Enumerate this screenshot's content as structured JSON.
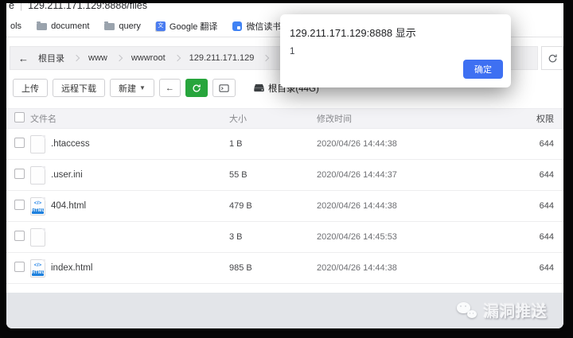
{
  "browser": {
    "url_prefix": "e",
    "url": "129.211.171.129:8888/files",
    "bookmarks": [
      {
        "label": "ols",
        "icon": "none"
      },
      {
        "label": "document",
        "icon": "folder"
      },
      {
        "label": "query",
        "icon": "folder"
      },
      {
        "label": "Google 翻译",
        "icon": "translate",
        "icon_glyph": "文"
      },
      {
        "label": "微信读书",
        "icon": "wechat-read"
      }
    ]
  },
  "dialog": {
    "title": "129.211.171.129:8888 显示",
    "message": "1",
    "confirm_label": "确定",
    "accent_color": "#3e70f2"
  },
  "breadcrumb": {
    "back_icon": "←",
    "items": [
      "根目录",
      "www",
      "wwwroot",
      "129.211.171.129"
    ]
  },
  "toolbar": {
    "upload_label": "上传",
    "remote_download_label": "远程下载",
    "new_label": "新建",
    "back_icon": "←",
    "root_label": "根目录(44G)",
    "green_color": "#27a53c"
  },
  "table": {
    "html_badge": "HTML",
    "headers": {
      "name": "文件名",
      "size": "大小",
      "mtime": "修改时间",
      "perm": "权限"
    },
    "rows": [
      {
        "name": ".htaccess",
        "type": "file",
        "size": "1 B",
        "mtime": "2020/04/26 14:44:38",
        "perm": "644"
      },
      {
        "name": ".user.ini",
        "type": "file",
        "size": "55 B",
        "mtime": "2020/04/26 14:44:37",
        "perm": "644"
      },
      {
        "name": "404.html",
        "type": "html",
        "size": "479 B",
        "mtime": "2020/04/26 14:44:38",
        "perm": "644"
      },
      {
        "name": "",
        "type": "file",
        "size": "3 B",
        "mtime": "2020/04/26 14:45:53",
        "perm": "644"
      },
      {
        "name": "index.html",
        "type": "html",
        "size": "985 B",
        "mtime": "2020/04/26 14:44:38",
        "perm": "644"
      }
    ]
  },
  "watermark": {
    "label": "漏洞推送"
  }
}
